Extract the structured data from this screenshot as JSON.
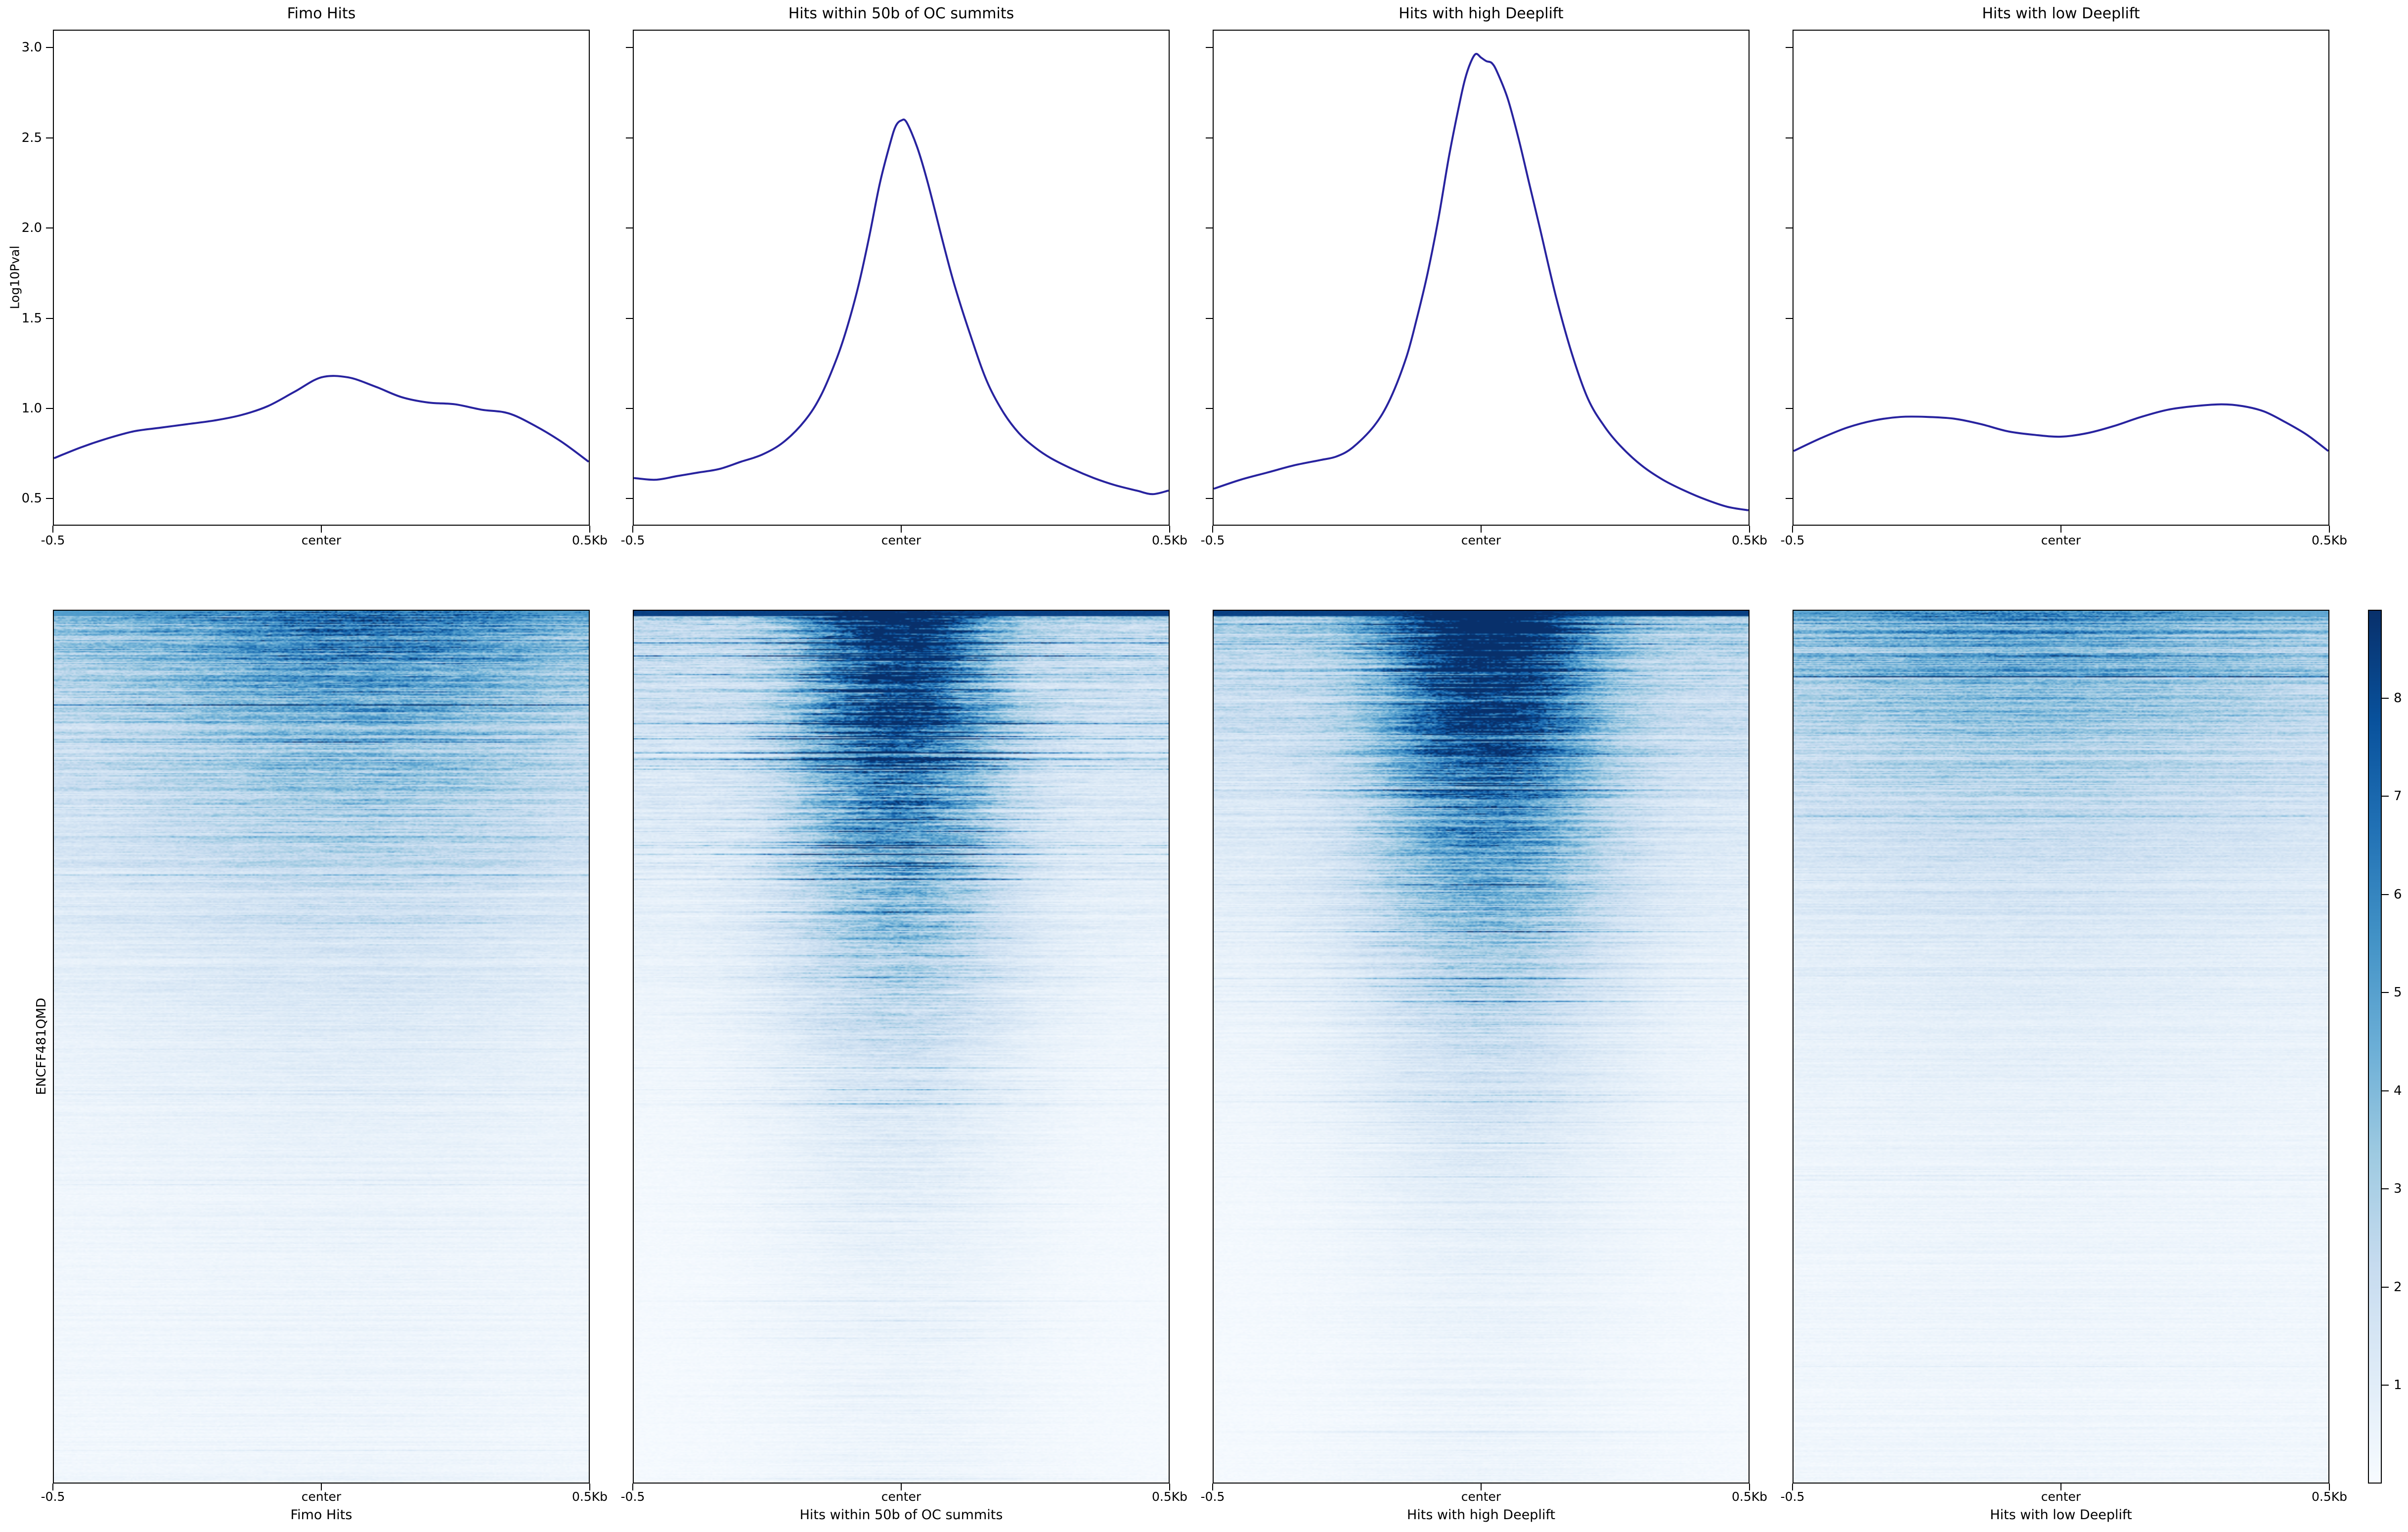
{
  "figure_title": "",
  "profile_axis": {
    "ylabel": "Log10Pval",
    "ytick_labels": [
      "3.0",
      "2.5",
      "2.0",
      "1.5",
      "1.0",
      "0.5"
    ],
    "ytick_values": [
      3.0,
      2.5,
      2.0,
      1.5,
      1.0,
      0.5
    ],
    "ylim": [
      0.35,
      3.1
    ],
    "xticks": [
      "-0.5",
      "center",
      "0.5Kb"
    ]
  },
  "heatmap_axis": {
    "row_label": "ENCFF481QMD",
    "xticks": [
      "-0.5",
      "center",
      "0.5Kb"
    ]
  },
  "colorbar": {
    "tick_labels": [
      "1",
      "2",
      "3",
      "4",
      "5",
      "6",
      "7",
      "8"
    ],
    "tick_values": [
      1,
      2,
      3,
      4,
      5,
      6,
      7,
      8
    ],
    "vmin": 0,
    "vmax": 8.9,
    "colormap": "Blues"
  },
  "colors": {
    "line": "#28239f",
    "axis": "#000000",
    "background": "#ffffff",
    "blues_stops": [
      "#f7fbff",
      "#deebf7",
      "#c6dbef",
      "#9ecae1",
      "#6baed6",
      "#4292c6",
      "#2171b5",
      "#08519c",
      "#08306b"
    ]
  },
  "chart_data": [
    {
      "type": "line",
      "title": "Fimo Hits",
      "xlabel": "Fimo Hits",
      "xlim": [
        -0.5,
        0.5
      ],
      "ylim": [
        0.35,
        3.1
      ],
      "x_tick_labels": [
        "-0.5",
        "center",
        "0.5Kb"
      ],
      "x": [
        -0.5,
        -0.45,
        -0.4,
        -0.35,
        -0.3,
        -0.25,
        -0.2,
        -0.15,
        -0.1,
        -0.05,
        0.0,
        0.05,
        0.1,
        0.15,
        0.2,
        0.25,
        0.3,
        0.35,
        0.4,
        0.45,
        0.5
      ],
      "y": [
        0.72,
        0.78,
        0.83,
        0.87,
        0.89,
        0.91,
        0.93,
        0.96,
        1.01,
        1.09,
        1.17,
        1.17,
        1.12,
        1.06,
        1.03,
        1.02,
        0.99,
        0.97,
        0.9,
        0.81,
        0.7
      ],
      "heatmap": {
        "seed": 11,
        "amp": 5.4,
        "shape": 3.3,
        "floor": 0.5,
        "base": 0.55,
        "peak": 0.6,
        "sigma": 0.3,
        "cx": 0.07,
        "baseDecay": 0.3,
        "widen": 0.45,
        "streak": 0.65,
        "darkP": 0.02
      }
    },
    {
      "type": "line",
      "title": "Hits within 50b of OC summits",
      "xlabel": "Hits within 50b of OC summits",
      "xlim": [
        -0.5,
        0.5
      ],
      "ylim": [
        0.35,
        3.1
      ],
      "x_tick_labels": [
        "-0.5",
        "center",
        "0.5Kb"
      ],
      "x": [
        -0.5,
        -0.46,
        -0.42,
        -0.38,
        -0.34,
        -0.3,
        -0.26,
        -0.22,
        -0.18,
        -0.15,
        -0.12,
        -0.1,
        -0.08,
        -0.06,
        -0.04,
        -0.02,
        -0.01,
        0.0,
        0.01,
        0.03,
        0.05,
        0.08,
        0.1,
        0.13,
        0.16,
        0.19,
        0.22,
        0.25,
        0.28,
        0.32,
        0.36,
        0.4,
        0.44,
        0.47,
        0.5
      ],
      "y": [
        0.61,
        0.6,
        0.62,
        0.64,
        0.66,
        0.7,
        0.74,
        0.81,
        0.93,
        1.07,
        1.28,
        1.46,
        1.68,
        1.95,
        2.25,
        2.48,
        2.57,
        2.6,
        2.59,
        2.45,
        2.25,
        1.9,
        1.68,
        1.4,
        1.15,
        0.98,
        0.86,
        0.78,
        0.72,
        0.66,
        0.61,
        0.57,
        0.54,
        0.52,
        0.54
      ],
      "heatmap": {
        "seed": 22,
        "amp": 8.8,
        "shape": 3.1,
        "floor": 0.45,
        "base": 0.3,
        "peak": 1.05,
        "sigma": 0.115,
        "cx": -0.01,
        "baseDecay": 0.5,
        "widen": 0.95,
        "streak": 0.95,
        "darkP": 0.09
      }
    },
    {
      "type": "line",
      "title": "Hits with high Deeplift",
      "xlabel": "Hits with high Deeplift",
      "xlim": [
        -0.5,
        0.5
      ],
      "ylim": [
        0.35,
        3.1
      ],
      "x_tick_labels": [
        "-0.5",
        "center",
        "0.5Kb"
      ],
      "x": [
        -0.5,
        -0.45,
        -0.4,
        -0.35,
        -0.3,
        -0.27,
        -0.24,
        -0.2,
        -0.17,
        -0.14,
        -0.12,
        -0.1,
        -0.08,
        -0.06,
        -0.04,
        -0.03,
        -0.02,
        -0.01,
        0.0,
        0.01,
        0.02,
        0.03,
        0.05,
        0.07,
        0.09,
        0.11,
        0.14,
        0.17,
        0.2,
        0.23,
        0.26,
        0.3,
        0.34,
        0.38,
        0.42,
        0.46,
        0.5
      ],
      "y": [
        0.55,
        0.6,
        0.64,
        0.68,
        0.71,
        0.73,
        0.78,
        0.9,
        1.05,
        1.28,
        1.5,
        1.75,
        2.05,
        2.4,
        2.7,
        2.83,
        2.92,
        2.97,
        2.95,
        2.93,
        2.92,
        2.87,
        2.72,
        2.5,
        2.25,
        2.0,
        1.62,
        1.3,
        1.05,
        0.9,
        0.79,
        0.68,
        0.6,
        0.54,
        0.49,
        0.45,
        0.43
      ],
      "heatmap": {
        "seed": 33,
        "amp": 8.8,
        "shape": 2.9,
        "floor": 0.45,
        "base": 0.32,
        "peak": 1.05,
        "sigma": 0.135,
        "cx": 0.015,
        "baseDecay": 0.45,
        "widen": 0.75,
        "streak": 0.7,
        "darkP": 0.05
      }
    },
    {
      "type": "line",
      "title": "Hits with low Deeplift",
      "xlabel": "Hits with low Deeplift",
      "xlim": [
        -0.5,
        0.5
      ],
      "ylim": [
        0.35,
        3.1
      ],
      "x_tick_labels": [
        "-0.5",
        "center",
        "0.5Kb"
      ],
      "x": [
        -0.5,
        -0.45,
        -0.4,
        -0.35,
        -0.3,
        -0.25,
        -0.2,
        -0.15,
        -0.1,
        -0.05,
        0.0,
        0.05,
        0.1,
        0.15,
        0.2,
        0.25,
        0.3,
        0.34,
        0.38,
        0.42,
        0.46,
        0.5
      ],
      "y": [
        0.76,
        0.83,
        0.89,
        0.93,
        0.95,
        0.95,
        0.94,
        0.91,
        0.87,
        0.85,
        0.84,
        0.86,
        0.9,
        0.95,
        0.99,
        1.01,
        1.02,
        1.01,
        0.98,
        0.92,
        0.85,
        0.76
      ],
      "heatmap": {
        "seed": 44,
        "amp": 4.9,
        "shape": 3.5,
        "floor": 0.5,
        "base": 0.62,
        "peak": 0.4,
        "sigma": 0.32,
        "cx": -0.07,
        "baseDecay": 0.22,
        "widen": 0.35,
        "streak": 0.55,
        "darkP": 0.015
      }
    }
  ]
}
